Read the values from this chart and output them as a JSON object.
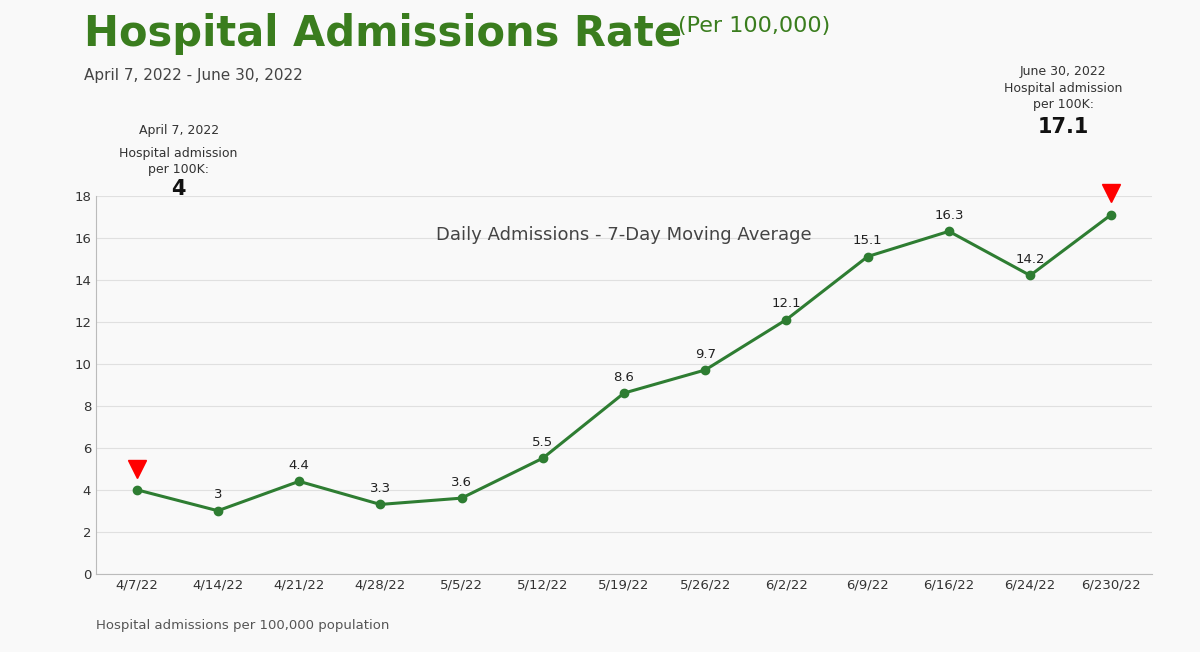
{
  "title_main": "Hospital Admissions Rate",
  "title_sub": "(Per 100,000)",
  "subtitle": "April 7, 2022 - June 30, 2022",
  "chart_label": "Daily Admissions - 7-Day Moving Average",
  "x_labels": [
    "4/7/22",
    "4/14/22",
    "4/21/22",
    "4/28/22",
    "5/5/22",
    "5/12/22",
    "5/19/22",
    "5/26/22",
    "6/2/22",
    "6/9/22",
    "6/16/22",
    "6/24/22",
    "6/230/22"
  ],
  "y_values": [
    4.0,
    3.0,
    4.4,
    3.3,
    3.6,
    5.5,
    8.6,
    9.7,
    12.1,
    15.1,
    16.3,
    14.2,
    17.1
  ],
  "ylim": [
    0,
    18
  ],
  "yticks": [
    0,
    2,
    4,
    6,
    8,
    10,
    12,
    14,
    16,
    18
  ],
  "line_color": "#2e7d32",
  "marker_color": "#2e7d32",
  "title_color": "#3a7d1e",
  "background_color": "#f9f9f9",
  "annotation_start_line1": "April 7, 2022",
  "annotation_start_line2": "Hospital admission",
  "annotation_start_line3": "per 100K:",
  "annotation_start_value": "4",
  "annotation_end_line1": "June 30, 2022",
  "annotation_end_line2": "Hospital admission",
  "annotation_end_line3": "per 100K:",
  "annotation_end_value": "17.1",
  "footer_text": "Hospital admissions per 100,000 population",
  "data_labels": [
    "4",
    "3",
    "4.4",
    "3.3",
    "3.6",
    "5.5",
    "8.6",
    "9.7",
    "12.1",
    "15.1",
    "16.3",
    "14.2",
    "17.1"
  ]
}
